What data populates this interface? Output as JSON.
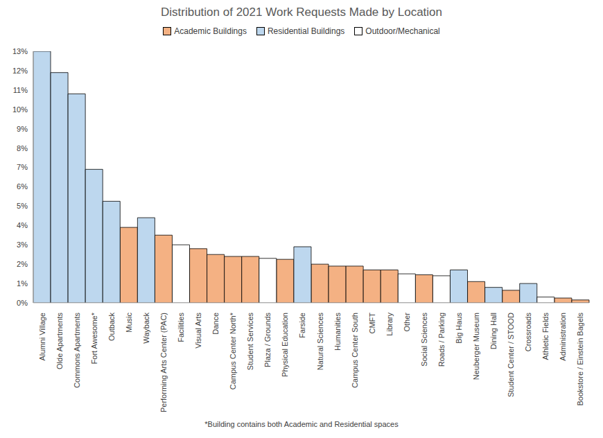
{
  "chart_data": {
    "type": "bar",
    "title": "Distribution of 2021 Work Requests Made by Location",
    "categories": [
      "Alumni Village",
      "Olde Apartments",
      "Commons Apartments",
      "Fort Awesome*",
      "Outback",
      "Music",
      "Wayback",
      "Performing Arts Center (PAC)",
      "Facilities",
      "Visual Arts",
      "Dance",
      "Campus Center North*",
      "Student Services",
      "Plaza / Grounds",
      "Physical Education",
      "Farside",
      "Natural Sciences",
      "Humanities",
      "Campus Center South",
      "CMFT",
      "Library",
      "Other",
      "Social Sciences",
      "Roads / Parking",
      "Big Haus",
      "Neuberger Museum",
      "Dining Hall",
      "Student Center / STOOD",
      "Crossroads",
      "Athletic Fields",
      "Administration",
      "Bookstore / Einstein Bagels"
    ],
    "series": [
      {
        "name": "Academic Buildings",
        "color": "#f4b183",
        "values": [
          null,
          null,
          null,
          null,
          null,
          3.9,
          null,
          3.5,
          null,
          2.8,
          2.5,
          2.4,
          2.4,
          null,
          2.25,
          null,
          2.0,
          1.9,
          1.9,
          1.7,
          1.7,
          null,
          1.45,
          null,
          null,
          1.1,
          null,
          0.65,
          null,
          null,
          0.25,
          0.15
        ]
      },
      {
        "name": "Residential Buildings",
        "color": "#bdd7ee",
        "values": [
          13.0,
          11.9,
          10.8,
          6.9,
          5.25,
          null,
          4.4,
          null,
          null,
          null,
          null,
          null,
          null,
          null,
          null,
          2.9,
          null,
          null,
          null,
          null,
          null,
          null,
          null,
          null,
          1.7,
          null,
          0.8,
          null,
          1.0,
          null,
          null,
          null
        ]
      },
      {
        "name": "Outdoor/Mechanical",
        "color": "#ffffff",
        "values": [
          null,
          null,
          null,
          null,
          null,
          null,
          null,
          null,
          3.0,
          null,
          null,
          null,
          null,
          2.3,
          null,
          null,
          null,
          null,
          null,
          null,
          null,
          1.5,
          null,
          1.4,
          null,
          null,
          null,
          null,
          null,
          0.3,
          null,
          null
        ]
      }
    ],
    "ylim": [
      0,
      13
    ],
    "yticks": [
      {
        "value": 0,
        "label": "0%"
      },
      {
        "value": 1,
        "label": "1%"
      },
      {
        "value": 2,
        "label": "2%"
      },
      {
        "value": 3,
        "label": "3%"
      },
      {
        "value": 4,
        "label": "4%"
      },
      {
        "value": 5,
        "label": "5%"
      },
      {
        "value": 6,
        "label": "6%"
      },
      {
        "value": 7,
        "label": "7%"
      },
      {
        "value": 8,
        "label": "8%"
      },
      {
        "value": 9,
        "label": "9%"
      },
      {
        "value": 10,
        "label": "10%"
      },
      {
        "value": 11,
        "label": "11%"
      },
      {
        "value": 12,
        "label": "12%"
      },
      {
        "value": 13,
        "label": "13%"
      }
    ],
    "stacked": true,
    "grid": false,
    "legend": "top",
    "annotations": [
      "*Building contains both Academic and Residential spaces"
    ]
  }
}
